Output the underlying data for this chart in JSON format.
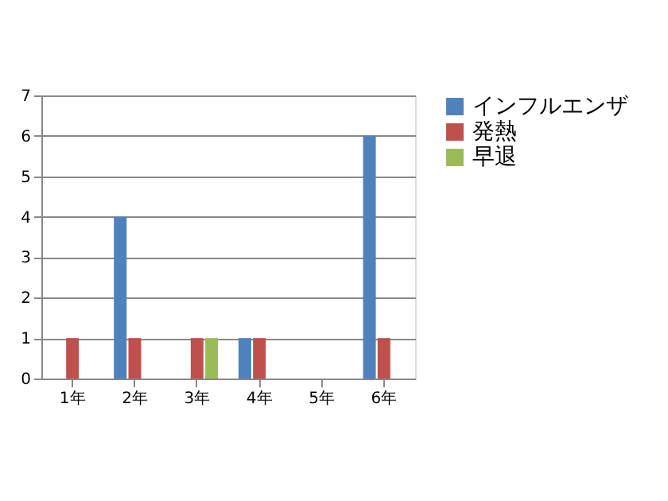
{
  "chart_data": {
    "type": "bar",
    "categories": [
      "1年",
      "2年",
      "3年",
      "4年",
      "5年",
      "6年"
    ],
    "series": [
      {
        "name": "インフルエンザ",
        "color": "#4f81bd",
        "values": [
          0,
          4,
          0,
          1,
          0,
          6
        ]
      },
      {
        "name": "発熱",
        "color": "#c0504d",
        "values": [
          1,
          1,
          1,
          1,
          0,
          1
        ]
      },
      {
        "name": "早退",
        "color": "#9bbb59",
        "values": [
          0,
          0,
          1,
          0,
          0,
          0
        ]
      }
    ],
    "ylim": [
      0,
      7
    ],
    "yticks": [
      0,
      1,
      2,
      3,
      4,
      5,
      6,
      7
    ],
    "grid": "y",
    "legend": "right"
  }
}
